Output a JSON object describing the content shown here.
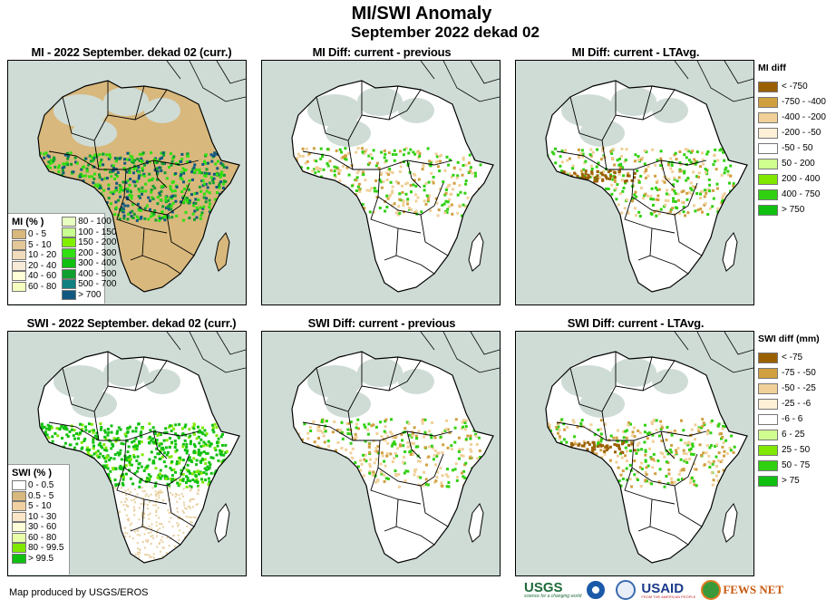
{
  "header": {
    "title": "MI/SWI Anomaly",
    "subtitle": "September 2022 dekad 02"
  },
  "panels": [
    {
      "id": "mi-curr",
      "title": "MI - 2022  September. dekad 02 (curr.)"
    },
    {
      "id": "mi-diff-prev",
      "title": "MI Diff: current - previous"
    },
    {
      "id": "mi-diff-lta",
      "title": "MI Diff: current - LTAvg."
    },
    {
      "id": "swi-curr",
      "title": "SWI - 2022 September. dekad 02 (curr.)"
    },
    {
      "id": "swi-diff-prev",
      "title": "SWI Diff: current - previous"
    },
    {
      "id": "swi-diff-lta",
      "title": "SWI Diff: current - LTAvg."
    }
  ],
  "legends": {
    "mi_pct": {
      "title": "MI (% )",
      "items": [
        {
          "label": "0 - 5",
          "color": "#d8b87c"
        },
        {
          "label": "5 - 10",
          "color": "#e3c796"
        },
        {
          "label": "10 - 20",
          "color": "#f0dcbc"
        },
        {
          "label": "20 - 40",
          "color": "#f8ead8"
        },
        {
          "label": "40 - 60",
          "color": "#ffffd8"
        },
        {
          "label": "60 - 80",
          "color": "#f6ffc0"
        },
        {
          "label": "80 - 100",
          "color": "#e8ffc0"
        },
        {
          "label": "100 - 150",
          "color": "#c8ff90"
        },
        {
          "label": "150 - 200",
          "color": "#80f000"
        },
        {
          "label": "200 - 300",
          "color": "#30e010"
        },
        {
          "label": "300 - 400",
          "color": "#10c010"
        },
        {
          "label": "400 - 500",
          "color": "#10a030"
        },
        {
          "label": "500 - 700",
          "color": "#108080"
        },
        {
          "label": "> 700",
          "color": "#105880"
        }
      ]
    },
    "swi_pct": {
      "title": "SWI (% )",
      "items": [
        {
          "label": "0 - 0.5",
          "color": "#ffffff"
        },
        {
          "label": "0.5 - 5",
          "color": "#d8b87c"
        },
        {
          "label": "5 - 10",
          "color": "#f0d0a0"
        },
        {
          "label": "10 - 30",
          "color": "#fde6c8"
        },
        {
          "label": "30 - 60",
          "color": "#ffffd8"
        },
        {
          "label": "60 - 80",
          "color": "#e8ffa8"
        },
        {
          "label": "80 - 99.5",
          "color": "#80e800"
        },
        {
          "label": "> 99.5",
          "color": "#10c010"
        }
      ]
    },
    "mi_diff": {
      "title": "MI diff",
      "items": [
        {
          "label": "< -750",
          "color": "#9a6000"
        },
        {
          "label": "-750 - -400",
          "color": "#d0a040"
        },
        {
          "label": "-400 - -200",
          "color": "#f0d098"
        },
        {
          "label": "-200 - -50",
          "color": "#fff0d8"
        },
        {
          "label": "-50 - 50",
          "color": "#ffffff"
        },
        {
          "label": "50 - 200",
          "color": "#d0ff90"
        },
        {
          "label": "200 - 400",
          "color": "#80e800"
        },
        {
          "label": "400 - 750",
          "color": "#30d010"
        },
        {
          "label": "> 750",
          "color": "#10c010"
        }
      ]
    },
    "swi_diff": {
      "title": "SWI diff (mm)",
      "items": [
        {
          "label": "< -75",
          "color": "#9a6000"
        },
        {
          "label": "-75 - -50",
          "color": "#d0a040"
        },
        {
          "label": "-50 - -25",
          "color": "#f0d098"
        },
        {
          "label": "-25 - -6",
          "color": "#fff0d8"
        },
        {
          "label": "-6 - 6",
          "color": "#ffffff"
        },
        {
          "label": "6 - 25",
          "color": "#d0ff90"
        },
        {
          "label": "25 - 50",
          "color": "#80e800"
        },
        {
          "label": "50 - 75",
          "color": "#30d010"
        },
        {
          "label": "> 75",
          "color": "#10c010"
        }
      ]
    }
  },
  "footer": {
    "credit": "Map produced by USGS/EROS",
    "logos": [
      {
        "name": "USGS",
        "tagline": "science for a changing world"
      },
      {
        "name": "NOAA"
      },
      {
        "name": "DOI"
      },
      {
        "name": "USAID",
        "tagline": "FROM THE AMERICAN PEOPLE"
      },
      {
        "name": "FEWS NET"
      }
    ]
  }
}
